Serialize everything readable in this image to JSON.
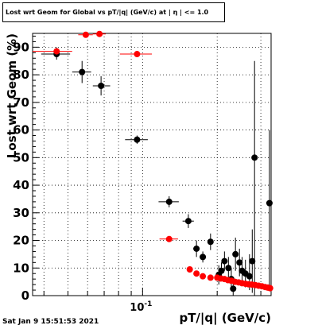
{
  "chart_data": {
    "type": "scatter",
    "title": "Lost wrt Geom for Global vs pT/|q| (GeV/c) at | η | <= 1.0",
    "xlabel": "pT/|q| (GeV/c)",
    "ylabel": "Lost wrt Geom (%)",
    "xscale": "log",
    "xlim": [
      0.036,
      0.33
    ],
    "ylim": [
      0,
      95
    ],
    "yticks": [
      0,
      10,
      20,
      30,
      40,
      50,
      60,
      70,
      80,
      90
    ],
    "xtick_major_label": "10",
    "xtick_major_exp": "-1",
    "grid": true,
    "legend": "none",
    "colors": {
      "series_black": "#000000",
      "series_red": "#ff0000"
    },
    "series": [
      {
        "color": "#000000",
        "points": [
          {
            "x": 0.045,
            "y": 87.5,
            "xerr": [
              0.039,
              0.051
            ],
            "yerr": [
              85.5,
              90
            ]
          },
          {
            "x": 0.057,
            "y": 81,
            "xerr": [
              0.052,
              0.062
            ],
            "yerr": [
              77,
              85
            ]
          },
          {
            "x": 0.068,
            "y": 76,
            "xerr": [
              0.063,
              0.074
            ],
            "yerr": [
              72.5,
              79.5
            ]
          },
          {
            "x": 0.095,
            "y": 56.5,
            "xerr": [
              0.085,
              0.105
            ],
            "yerr": [
              55,
              58
            ]
          },
          {
            "x": 0.128,
            "y": 34,
            "xerr": [
              0.116,
              0.14
            ],
            "yerr": [
              32,
              36
            ]
          },
          {
            "x": 0.153,
            "y": 27,
            "xerr": [
              0.145,
              0.161
            ],
            "yerr": [
              24.5,
              29.5
            ]
          },
          {
            "x": 0.165,
            "y": 17,
            "xerr": [
              0.16,
              0.17
            ],
            "yerr": [
              14,
              20
            ]
          },
          {
            "x": 0.175,
            "y": 14,
            "xerr": [
              0.171,
              0.179
            ],
            "yerr": [
              12,
              16
            ]
          },
          {
            "x": 0.188,
            "y": 19.5,
            "xerr": [
              0.184,
              0.192
            ],
            "yerr": [
              16.5,
              22.5
            ]
          },
          {
            "x": 0.203,
            "y": 7.5,
            "xerr": [
              0.2,
              0.206
            ],
            "yerr": [
              4,
              11
            ]
          },
          {
            "x": 0.208,
            "y": 9,
            "xerr": [
              0.205,
              0.211
            ],
            "yerr": [
              6,
              12
            ]
          },
          {
            "x": 0.214,
            "y": 12.5,
            "xerr": [
              0.211,
              0.217
            ],
            "yerr": [
              9,
              16
            ]
          },
          {
            "x": 0.222,
            "y": 10,
            "xerr": [
              0.219,
              0.225
            ],
            "yerr": [
              6,
              14
            ]
          },
          {
            "x": 0.228,
            "y": 6,
            "xerr": [
              0.225,
              0.231
            ],
            "yerr": [
              2,
              10
            ]
          },
          {
            "x": 0.232,
            "y": 2.5,
            "xerr": [
              0.229,
              0.235
            ],
            "yerr": [
              0,
              6
            ]
          },
          {
            "x": 0.237,
            "y": 15,
            "xerr": [
              0.234,
              0.24
            ],
            "yerr": [
              9,
              21
            ]
          },
          {
            "x": 0.246,
            "y": 12,
            "xerr": [
              0.243,
              0.249
            ],
            "yerr": [
              7,
              17
            ]
          },
          {
            "x": 0.252,
            "y": 9,
            "xerr": [
              0.249,
              0.255
            ],
            "yerr": [
              4,
              14
            ]
          },
          {
            "x": 0.26,
            "y": 8,
            "xerr": [
              0.257,
              0.263
            ],
            "yerr": [
              3,
              13
            ]
          },
          {
            "x": 0.27,
            "y": 7,
            "xerr": [
              0.267,
              0.273
            ],
            "yerr": [
              2,
              15
            ]
          },
          {
            "x": 0.277,
            "y": 12.5,
            "xerr": [
              0.274,
              0.28
            ],
            "yerr": [
              1,
              24
            ]
          },
          {
            "x": 0.283,
            "y": 50,
            "xerr": [
              0.28,
              0.286
            ],
            "yerr": [
              0,
              85
            ]
          },
          {
            "x": 0.325,
            "y": 33.5,
            "xerr": [
              0.322,
              0.328
            ],
            "yerr": [
              3,
              60
            ]
          }
        ]
      },
      {
        "color": "#ff0000",
        "points": [
          {
            "x": 0.045,
            "y": 88.5,
            "xerr": [
              0.036,
              0.052
            ],
            "yerr": [
              88,
              89
            ]
          },
          {
            "x": 0.059,
            "y": 94.5,
            "xerr": [
              0.055,
              0.063
            ],
            "yerr": [
              94,
              95
            ]
          },
          {
            "x": 0.067,
            "y": 94.8,
            "xerr": [
              0.063,
              0.071
            ],
            "yerr": [
              94.3,
              95
            ]
          },
          {
            "x": 0.095,
            "y": 87.5,
            "xerr": [
              0.081,
              0.109
            ],
            "yerr": [
              87,
              88
            ]
          },
          {
            "x": 0.128,
            "y": 20.5,
            "xerr": [
              0.117,
              0.139
            ],
            "yerr": [
              20,
              21
            ]
          },
          {
            "x": 0.155,
            "y": 9.5,
            "xerr": [
              0.151,
              0.159
            ],
            "yerr": [
              9,
              10
            ]
          },
          {
            "x": 0.165,
            "y": 8,
            "xerr": [
              0.161,
              0.169
            ],
            "yerr": [
              7.5,
              8.5
            ]
          },
          {
            "x": 0.175,
            "y": 7,
            "xerr": [
              0.171,
              0.179
            ],
            "yerr": [
              6.5,
              7.5
            ]
          },
          {
            "x": 0.188,
            "y": 6.5,
            "xerr": [
              0.185,
              0.191
            ],
            "yerr": [
              6,
              7
            ]
          },
          {
            "x": 0.2,
            "y": 6.5,
            "xerr": [
              0.197,
              0.203
            ],
            "yerr": [
              6,
              7
            ]
          },
          {
            "x": 0.207,
            "y": 6.2,
            "xerr": [
              0.204,
              0.21
            ],
            "yerr": [
              5.7,
              6.7
            ]
          },
          {
            "x": 0.214,
            "y": 6,
            "xerr": [
              0.211,
              0.217
            ],
            "yerr": [
              5.5,
              6.5
            ]
          },
          {
            "x": 0.221,
            "y": 5.6,
            "xerr": [
              0.218,
              0.224
            ],
            "yerr": [
              5.1,
              6.1
            ]
          },
          {
            "x": 0.228,
            "y": 5.4,
            "xerr": [
              0.225,
              0.231
            ],
            "yerr": [
              4.9,
              5.9
            ]
          },
          {
            "x": 0.236,
            "y": 5,
            "xerr": [
              0.233,
              0.239
            ],
            "yerr": [
              4.5,
              5.5
            ]
          },
          {
            "x": 0.244,
            "y": 4.8,
            "xerr": [
              0.241,
              0.247
            ],
            "yerr": [
              4.3,
              5.3
            ]
          },
          {
            "x": 0.252,
            "y": 4.5,
            "xerr": [
              0.249,
              0.255
            ],
            "yerr": [
              4,
              5
            ]
          },
          {
            "x": 0.26,
            "y": 4.3,
            "xerr": [
              0.257,
              0.263
            ],
            "yerr": [
              3.8,
              4.8
            ]
          },
          {
            "x": 0.268,
            "y": 4.1,
            "xerr": [
              0.265,
              0.271
            ],
            "yerr": [
              3.6,
              4.6
            ]
          },
          {
            "x": 0.276,
            "y": 4,
            "xerr": [
              0.273,
              0.279
            ],
            "yerr": [
              3.5,
              4.5
            ]
          },
          {
            "x": 0.285,
            "y": 3.8,
            "xerr": [
              0.282,
              0.288
            ],
            "yerr": [
              3.3,
              4.3
            ]
          },
          {
            "x": 0.294,
            "y": 3.6,
            "xerr": [
              0.291,
              0.297
            ],
            "yerr": [
              3.1,
              4.1
            ]
          },
          {
            "x": 0.303,
            "y": 3.4,
            "xerr": [
              0.3,
              0.306
            ],
            "yerr": [
              2.9,
              3.9
            ]
          },
          {
            "x": 0.312,
            "y": 3.1,
            "xerr": [
              0.309,
              0.315
            ],
            "yerr": [
              2.6,
              3.6
            ]
          },
          {
            "x": 0.32,
            "y": 2.9,
            "xerr": [
              0.317,
              0.323
            ],
            "yerr": [
              2.4,
              3.4
            ]
          },
          {
            "x": 0.327,
            "y": 2.7,
            "xerr": [
              0.324,
              0.33
            ],
            "yerr": [
              2.2,
              3.2
            ]
          }
        ]
      }
    ]
  },
  "footer": {
    "date_stamp": "Sat Jan  9 15:51:53 2021"
  }
}
